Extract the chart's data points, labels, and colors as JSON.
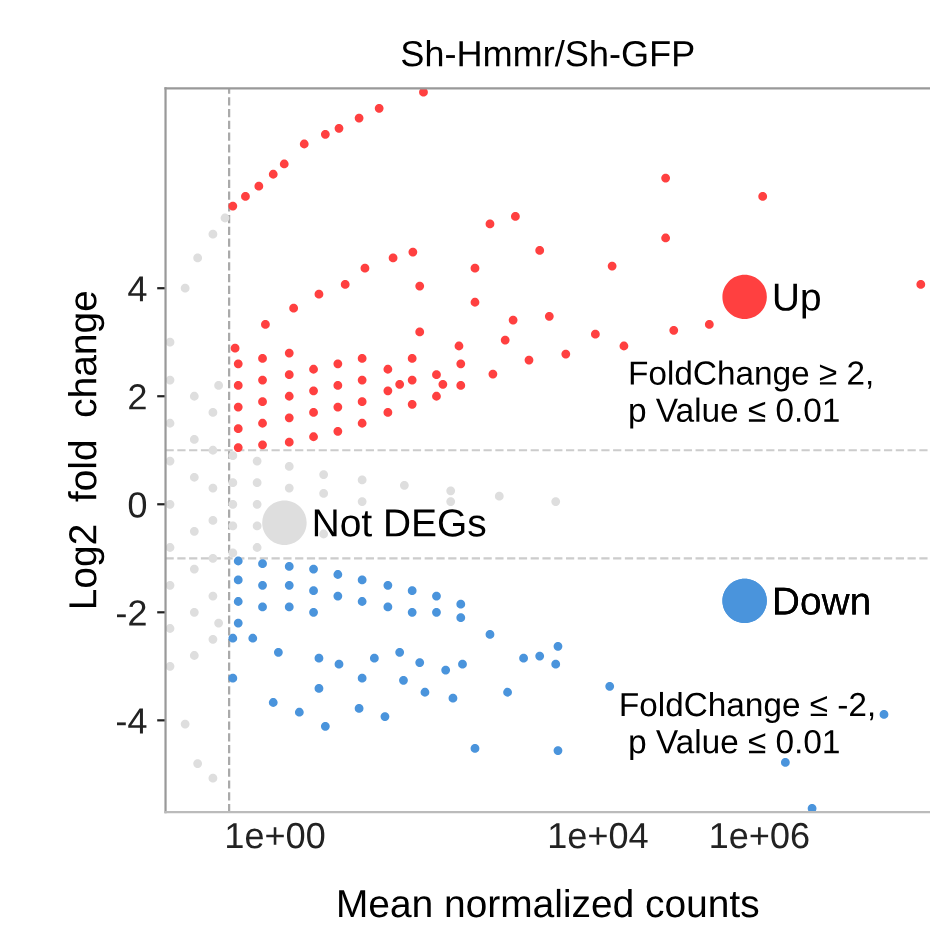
{
  "chart_data": {
    "type": "scatter",
    "title": "Sh-Hmmr/Sh-GFP",
    "xlabel": "Mean normalized counts",
    "ylabel": "Log2  fold  change",
    "log": "x",
    "xlim": [
      0.044,
      130000000
    ],
    "xticks": [
      {
        "value": 1,
        "label": "1e+00"
      },
      {
        "value": 10000,
        "label": "1e+04"
      },
      {
        "value": 1000000,
        "label": "1e+06"
      }
    ],
    "ylim": [
      -5.7,
      7.7
    ],
    "yticks": [
      -4,
      -2,
      0,
      2,
      4
    ],
    "grid": false,
    "legend": "right",
    "marker": "circle",
    "ref_lines": [
      {
        "axis": "x",
        "value": 0.27,
        "color": "#aaaaaa",
        "line_style": "dashed"
      },
      {
        "axis": "y",
        "value": 1,
        "color": "#cccccc",
        "line_style": "dashed"
      },
      {
        "axis": "y",
        "value": -1,
        "color": "#cccccc",
        "line_style": "dashed"
      }
    ],
    "annotations": [
      "FoldChange ≥ 2,\np Value ≤ 0.01",
      "FoldChange ≤ -2,\n p Value ≤ 0.01"
    ],
    "series": [
      {
        "name": "Not DEGs",
        "color": "#dedede",
        "x": [
          0.05,
          0.05,
          0.05,
          0.05,
          0.05,
          0.05,
          0.05,
          0.05,
          0.05,
          0.077,
          0.11,
          0.17,
          0.24,
          0.077,
          0.11,
          0.17,
          0.1,
          0.1,
          0.1,
          0.1,
          0.1,
          0.1,
          0.1,
          0.17,
          0.17,
          0.17,
          0.17,
          0.17,
          0.17,
          0.17,
          0.2,
          0.2,
          0.3,
          0.3,
          0.3,
          0.3,
          0.3,
          0.6,
          0.6,
          0.6,
          0.6,
          0.6,
          1.5,
          1.5,
          4,
          4,
          4,
          12,
          12,
          40,
          150,
          150,
          600,
          3000
        ],
        "values": [
          2.3,
          1.5,
          0.8,
          0,
          -0.8,
          -1.5,
          -2.3,
          3.0,
          -3.0,
          4.0,
          4.56,
          5.0,
          5.3,
          -4.07,
          -4.8,
          -5.07,
          2.0,
          1.2,
          0.5,
          -0.5,
          -1.2,
          -2.0,
          -2.8,
          1.7,
          1.0,
          0.3,
          -0.3,
          -1.0,
          -1.7,
          -2.5,
          2.2,
          -2.2,
          0.9,
          0.4,
          0,
          -0.4,
          -0.9,
          0.8,
          0.4,
          0,
          -0.4,
          -0.8,
          0.7,
          0.3,
          0.55,
          0.2,
          -0.55,
          0.45,
          0.05,
          0.35,
          0.25,
          0.05,
          0.15,
          0.05
        ]
      },
      {
        "name": "Up",
        "color": "#ff4040",
        "x": [
          0.3,
          0.43,
          0.63,
          0.95,
          1.3,
          2.3,
          4.2,
          6.2,
          11,
          19.5,
          69,
          0.32,
          0.76,
          1.7,
          3.5,
          7.4,
          13,
          29,
          51,
          460,
          950,
          69000,
          1100000,
          300,
          1900,
          15000,
          69000,
          100000000,
          62,
          300,
          890,
          2500,
          9300,
          21000,
          87000,
          240000,
          4000,
          1400,
          710,
          190,
          500,
          62,
          35,
          120,
          0.35,
          0.35,
          0.35,
          0.35,
          0.35,
          0.7,
          0.7,
          0.7,
          0.7,
          0.7,
          1.5,
          1.5,
          1.5,
          1.5,
          1.5,
          3,
          3,
          3,
          3,
          6,
          6,
          6,
          6,
          12,
          12,
          12,
          12,
          25,
          25,
          25,
          50,
          50,
          50,
          100,
          100,
          200,
          200
        ],
        "values": [
          5.52,
          5.7,
          5.89,
          6.11,
          6.3,
          6.67,
          6.85,
          6.96,
          7.15,
          7.33,
          7.63,
          2.89,
          3.33,
          3.63,
          3.89,
          4.07,
          4.37,
          4.56,
          4.67,
          5.19,
          5.33,
          6.04,
          5.7,
          4.37,
          4.7,
          4.41,
          4.93,
          4.07,
          4.04,
          3.74,
          3.41,
          3.48,
          3.15,
          2.93,
          3.22,
          3.33,
          2.78,
          2.67,
          3.04,
          2.93,
          2.41,
          3.19,
          2.22,
          2.22,
          1.05,
          1.4,
          1.8,
          2.2,
          2.6,
          1.1,
          1.5,
          1.9,
          2.3,
          2.7,
          1.15,
          1.6,
          2.0,
          2.4,
          2.8,
          1.25,
          1.7,
          2.1,
          2.5,
          1.35,
          1.8,
          2.2,
          2.6,
          1.5,
          1.9,
          2.3,
          2.7,
          1.7,
          2.1,
          2.5,
          1.85,
          2.3,
          2.7,
          2.0,
          2.4,
          2.2,
          2.6
        ]
      },
      {
        "name": "Down",
        "color": "#4a94dc",
        "x": [
          0.3,
          0.3,
          0.95,
          2,
          4.2,
          3.5,
          11,
          23,
          12,
          39,
          72,
          160,
          460,
          760,
          1200,
          1900,
          3200,
          3000,
          300,
          3200,
          14000,
          2100000,
          4500000,
          35000000,
          210,
          130,
          62,
          35,
          17,
          6.2,
          3.5,
          1.1,
          0.53,
          0.35,
          0.35,
          0.35,
          0.35,
          0.7,
          0.7,
          0.7,
          1.5,
          1.5,
          1.5,
          3,
          3,
          3,
          6,
          6,
          12,
          12,
          25,
          25,
          50,
          50,
          100,
          100,
          200,
          200
        ],
        "values": [
          -2.48,
          -3.22,
          -3.67,
          -3.85,
          -4.11,
          -3.41,
          -3.78,
          -3.93,
          -3.22,
          -3.26,
          -3.48,
          -3.59,
          -2.41,
          -3.48,
          -2.85,
          -2.81,
          -2.63,
          -2.96,
          -4.52,
          -4.56,
          -3.37,
          -4.78,
          -5.63,
          -3.89,
          -2.96,
          -3.07,
          -2.93,
          -2.74,
          -2.85,
          -2.96,
          -2.85,
          -2.74,
          -2.48,
          -1.05,
          -1.4,
          -1.8,
          -2.2,
          -1.1,
          -1.5,
          -1.9,
          -1.15,
          -1.5,
          -1.9,
          -1.2,
          -1.6,
          -2.0,
          -1.3,
          -1.7,
          -1.4,
          -1.8,
          -1.5,
          -1.9,
          -1.6,
          -2.0,
          -1.7,
          -2.0,
          -1.85,
          -2.1
        ]
      }
    ]
  }
}
